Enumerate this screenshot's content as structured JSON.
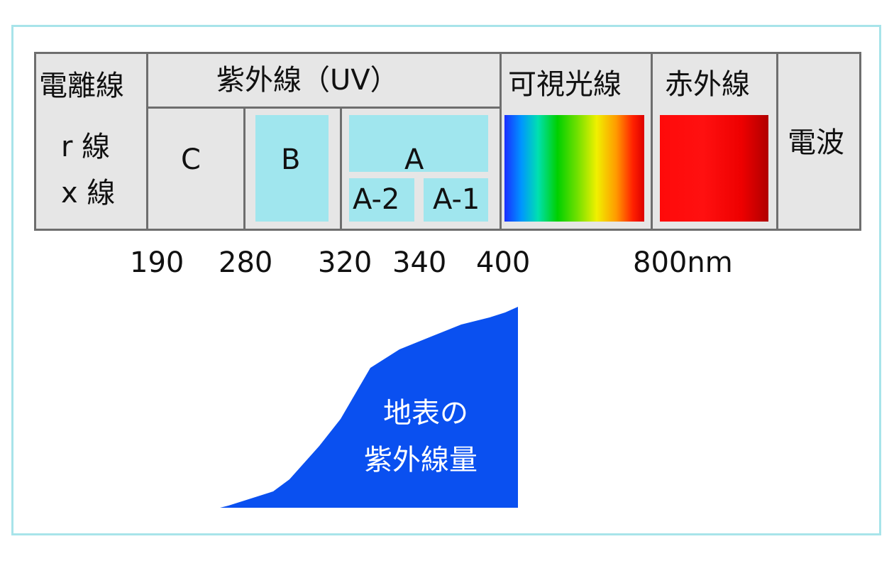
{
  "header": {
    "ionizing": "電離線",
    "uv": "紫外線（UV）",
    "visible": "可視光線",
    "infrared": "赤外線",
    "radio": "電波"
  },
  "ionizing_rays": [
    "r 線",
    "x 線"
  ],
  "uv_bands": {
    "c": "C",
    "b": "B",
    "a": "A",
    "a2": "A-2",
    "a1": "A-1"
  },
  "wavelength_ticks": [
    "190",
    "280",
    "320",
    "340",
    "400",
    "800nm"
  ],
  "surface_uv_label": [
    "地表の",
    "紫外線量"
  ],
  "colors": {
    "frame": "#a8e4ea",
    "cell_fill": "#e6e6e6",
    "cell_border": "#6e6e6e",
    "uv_box": "#a0e6ee",
    "area_fill": "#0a50f0"
  }
}
